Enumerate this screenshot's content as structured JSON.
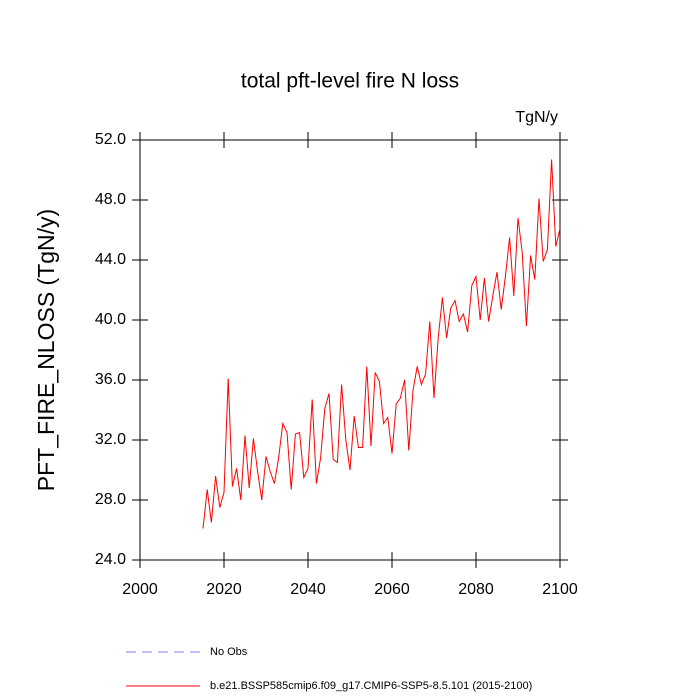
{
  "chart_data": {
    "type": "line",
    "title": "total pft-level fire N loss",
    "units": "TgN/y",
    "y_label": "PFT_FIRE_NLOSS  (TgN/y)",
    "x": [
      2015,
      2016,
      2017,
      2018,
      2019,
      2020,
      2021,
      2022,
      2023,
      2024,
      2025,
      2026,
      2027,
      2028,
      2029,
      2030,
      2031,
      2032,
      2033,
      2034,
      2035,
      2036,
      2037,
      2038,
      2039,
      2040,
      2041,
      2042,
      2043,
      2044,
      2045,
      2046,
      2047,
      2048,
      2049,
      2050,
      2051,
      2052,
      2053,
      2054,
      2055,
      2056,
      2057,
      2058,
      2059,
      2060,
      2061,
      2062,
      2063,
      2064,
      2065,
      2066,
      2067,
      2068,
      2069,
      2070,
      2071,
      2072,
      2073,
      2074,
      2075,
      2076,
      2077,
      2078,
      2079,
      2080,
      2081,
      2082,
      2083,
      2084,
      2085,
      2086,
      2087,
      2088,
      2089,
      2090,
      2091,
      2092,
      2093,
      2094,
      2095,
      2096,
      2097,
      2098,
      2099,
      2100
    ],
    "series": [
      {
        "name": "b.e21.BSSP585cmip6.f09_g17.CMIP6-SSP5-8.5.101 (2015-2100)",
        "color": "#ff0000",
        "values": [
          26.1,
          28.7,
          26.5,
          29.6,
          27.5,
          28.5,
          36.1,
          28.9,
          30.1,
          28.0,
          32.3,
          28.8,
          32.1,
          29.9,
          28.0,
          30.9,
          29.9,
          29.1,
          30.8,
          33.1,
          32.5,
          28.7,
          32.4,
          32.5,
          29.5,
          30.1,
          34.7,
          29.1,
          30.8,
          34.1,
          35.1,
          30.7,
          30.5,
          35.7,
          32.0,
          30.0,
          33.6,
          31.5,
          31.5,
          36.9,
          31.6,
          36.5,
          35.9,
          33.1,
          33.5,
          31.1,
          34.4,
          34.8,
          36.0,
          31.3,
          35.3,
          36.9,
          35.7,
          36.4,
          39.9,
          34.8,
          38.8,
          41.5,
          38.8,
          40.8,
          41.3,
          39.9,
          40.4,
          39.2,
          42.3,
          42.9,
          40.0,
          42.8,
          39.9,
          41.6,
          43.2,
          40.7,
          42.9,
          45.5,
          41.6,
          46.8,
          44.5,
          39.6,
          44.3,
          42.7,
          48.1,
          43.9,
          44.7,
          50.7,
          44.9,
          46.1
        ]
      }
    ],
    "legend": [
      {
        "name": "No Obs",
        "color": "#8080ff",
        "dashed": true
      }
    ],
    "xlim": [
      2000,
      2100
    ],
    "xticks": [
      2000,
      2020,
      2040,
      2060,
      2080,
      2100
    ],
    "ylim": [
      24,
      52
    ],
    "yticks": [
      {
        "value": 24,
        "label": "24.0"
      },
      {
        "value": 28,
        "label": "28.0"
      },
      {
        "value": 32,
        "label": "32.0"
      },
      {
        "value": 36,
        "label": "36.0"
      },
      {
        "value": 40,
        "label": "40.0"
      },
      {
        "value": 44,
        "label": "44.0"
      },
      {
        "value": 48,
        "label": "48.0"
      },
      {
        "value": 52,
        "label": "52.0"
      }
    ]
  }
}
